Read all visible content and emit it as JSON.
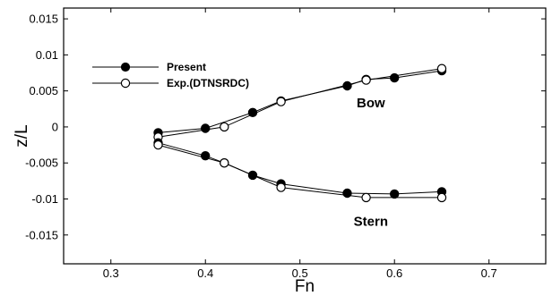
{
  "chart_data": {
    "type": "line",
    "xlabel": "Fn",
    "ylabel": "z/L",
    "xlim": [
      0.25,
      0.76
    ],
    "ylim": [
      -0.019,
      0.0165
    ],
    "xticks": [
      0.3,
      0.4,
      0.5,
      0.6,
      0.7
    ],
    "xtick_labels": [
      "0.3",
      "0.4",
      "0.5",
      "0.6",
      "0.7"
    ],
    "yticks": [
      0.015,
      0.01,
      0.005,
      0,
      -0.005,
      -0.01,
      -0.015
    ],
    "ytick_labels": [
      "0.015",
      "0.01",
      "0.005",
      "0",
      "-0.005",
      "-0.01",
      "-0.015"
    ],
    "grid": false,
    "legend_position": "upper-left",
    "series": [
      {
        "name": "Present",
        "marker": "filled-circle",
        "color": "#000000",
        "group": "Bow",
        "x": [
          0.35,
          0.4,
          0.45,
          0.48,
          0.55,
          0.57,
          0.6,
          0.65
        ],
        "y": [
          -0.0008,
          -0.0002,
          0.002,
          0.0036,
          0.0057,
          0.0066,
          0.0068,
          0.0078
        ]
      },
      {
        "name": "Exp.(DTNSRDC)",
        "marker": "open-circle",
        "color": "#000000",
        "group": "Bow",
        "x": [
          0.35,
          0.42,
          0.48,
          0.57,
          0.65
        ],
        "y": [
          -0.0014,
          0.0,
          0.0035,
          0.0065,
          0.0081
        ]
      },
      {
        "name": "Present",
        "marker": "filled-circle",
        "color": "#000000",
        "group": "Stern",
        "x": [
          0.35,
          0.4,
          0.42,
          0.45,
          0.48,
          0.55,
          0.6,
          0.65
        ],
        "y": [
          -0.0022,
          -0.004,
          -0.005,
          -0.0067,
          -0.0079,
          -0.0092,
          -0.0093,
          -0.009
        ]
      },
      {
        "name": "Exp.(DTNSRDC)",
        "marker": "open-circle",
        "color": "#000000",
        "group": "Stern",
        "x": [
          0.35,
          0.42,
          0.48,
          0.57,
          0.65
        ],
        "y": [
          -0.0025,
          -0.005,
          -0.0084,
          -0.0098,
          -0.0098
        ]
      }
    ],
    "annotations": [
      {
        "text": "Bow",
        "x": 0.575,
        "y": 0.0027
      },
      {
        "text": "Stern",
        "x": 0.575,
        "y": -0.0137
      }
    ]
  }
}
